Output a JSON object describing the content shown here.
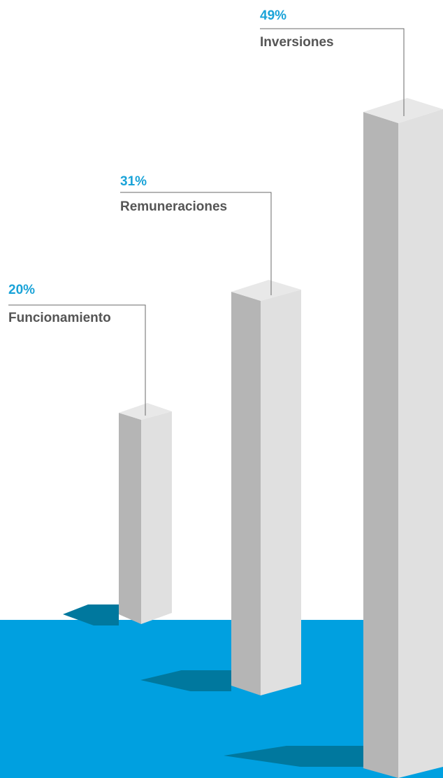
{
  "chart_data": {
    "type": "bar",
    "style": "3d-isometric-columns",
    "categories": [
      "Funcionamiento",
      "Remuneraciones",
      "Inversiones"
    ],
    "values": [
      20,
      31,
      49
    ],
    "value_labels": [
      "20%",
      "31%",
      "49%"
    ],
    "unit": "%",
    "title": "",
    "xlabel": "",
    "ylabel": "",
    "ylim": [
      0,
      49
    ],
    "grid": false,
    "legend": "none"
  },
  "colors": {
    "background": "#ffffff",
    "floor": "#00a0e0",
    "shadow": "#00789e",
    "percent_text": "#1aa3d8",
    "label_text": "#555555",
    "column_top": "#e8e8e8",
    "column_left": "#b5b5b5",
    "column_right": "#e0e0e0",
    "leader_line": "#6a6a6a"
  }
}
